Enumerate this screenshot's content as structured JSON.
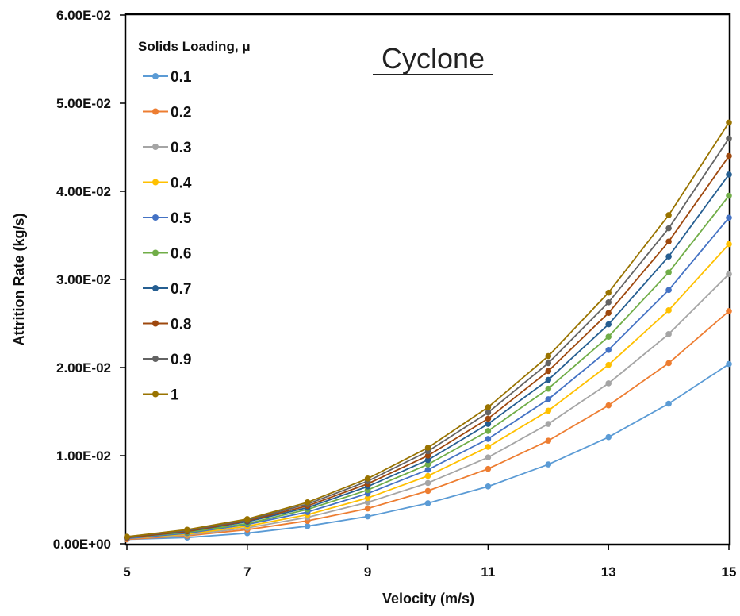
{
  "chart_data": {
    "type": "line",
    "annotation": "Cyclone",
    "xlabel": "Velocity (m/s)",
    "ylabel": "Attrition Rate (kg/s)",
    "xlim": [
      5,
      15
    ],
    "ylim": [
      0,
      0.06
    ],
    "x_ticks": [
      5,
      7,
      9,
      11,
      13,
      15
    ],
    "x_tick_labels": [
      "5",
      "7",
      "9",
      "11",
      "13",
      "15"
    ],
    "y_ticks": [
      0,
      0.01,
      0.02,
      0.03,
      0.04,
      0.05,
      0.06
    ],
    "y_tick_labels": [
      "0.00E+00",
      "1.00E-02",
      "2.00E-02",
      "3.00E-02",
      "4.00E-02",
      "5.00E-02",
      "6.00E-02"
    ],
    "grid": false,
    "legend_title": "Solids Loading, μ",
    "legend_position": "top-left",
    "x": [
      5,
      6,
      7,
      8,
      9,
      10,
      11,
      12,
      13,
      14,
      15
    ],
    "series": [
      {
        "name": "0.1",
        "color": "#5B9BD5",
        "values": [
          0.0005,
          0.0007,
          0.0012,
          0.002,
          0.0031,
          0.0046,
          0.0065,
          0.009,
          0.0121,
          0.0159,
          0.0204
        ]
      },
      {
        "name": "0.2",
        "color": "#ED7D31",
        "values": [
          0.0005,
          0.0009,
          0.0016,
          0.0026,
          0.004,
          0.006,
          0.0085,
          0.0117,
          0.0157,
          0.0205,
          0.0264
        ]
      },
      {
        "name": "0.3",
        "color": "#A5A5A5",
        "values": [
          0.0006,
          0.001,
          0.0018,
          0.003,
          0.0047,
          0.0069,
          0.0098,
          0.0136,
          0.0182,
          0.0238,
          0.0306
        ]
      },
      {
        "name": "0.4",
        "color": "#FFC000",
        "values": [
          0.0006,
          0.0011,
          0.002,
          0.0033,
          0.0052,
          0.0077,
          0.011,
          0.0151,
          0.0203,
          0.0265,
          0.034
        ]
      },
      {
        "name": "0.5",
        "color": "#4472C4",
        "values": [
          0.0006,
          0.0012,
          0.0022,
          0.0036,
          0.0057,
          0.0084,
          0.0119,
          0.0164,
          0.022,
          0.0288,
          0.037
        ]
      },
      {
        "name": "0.6",
        "color": "#70AD47",
        "values": [
          0.0007,
          0.0013,
          0.0023,
          0.0039,
          0.0061,
          0.009,
          0.0128,
          0.0176,
          0.0235,
          0.0308,
          0.0395
        ]
      },
      {
        "name": "0.7",
        "color": "#255E91",
        "values": [
          0.0007,
          0.0014,
          0.0025,
          0.0041,
          0.0065,
          0.0095,
          0.0136,
          0.0186,
          0.0249,
          0.0326,
          0.0419
        ]
      },
      {
        "name": "0.8",
        "color": "#9E480E",
        "values": [
          0.0007,
          0.0014,
          0.0026,
          0.0043,
          0.0068,
          0.01,
          0.0142,
          0.0196,
          0.0262,
          0.0343,
          0.044
        ]
      },
      {
        "name": "0.9",
        "color": "#636363",
        "values": [
          0.0008,
          0.0015,
          0.0027,
          0.0045,
          0.0071,
          0.0105,
          0.0149,
          0.0205,
          0.0274,
          0.0358,
          0.046
        ]
      },
      {
        "name": "1",
        "color": "#997300",
        "values": [
          0.0008,
          0.0016,
          0.0028,
          0.0047,
          0.0074,
          0.0109,
          0.0155,
          0.0213,
          0.0285,
          0.0373,
          0.0478
        ]
      }
    ]
  }
}
